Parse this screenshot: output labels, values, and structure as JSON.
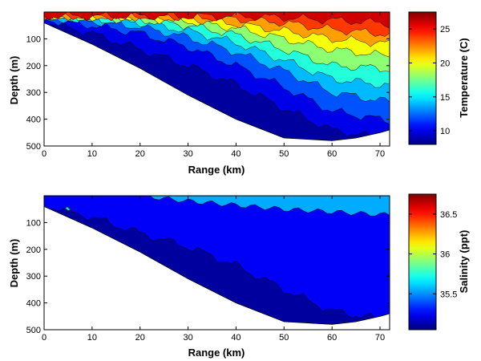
{
  "chart_data": [
    {
      "type": "heatmap",
      "subtype": "filled-contour",
      "title": "",
      "xlabel": "Range (km)",
      "ylabel": "Depth (m)",
      "xlim": [
        0,
        72
      ],
      "ylim": [
        0,
        500
      ],
      "y_reversed": true,
      "x_ticks": [
        "0",
        "10",
        "20",
        "30",
        "40",
        "50",
        "60",
        "70"
      ],
      "y_ticks": [
        "100",
        "200",
        "300",
        "400",
        "500"
      ],
      "colorbar": {
        "label": "Temperature (C)",
        "ticks": [
          "10",
          "15",
          "20",
          "25"
        ],
        "range": [
          8,
          27.5
        ],
        "colormap": "jet"
      },
      "bottom_depth_m": {
        "x": [
          0,
          10,
          20,
          30,
          40,
          50,
          60,
          65,
          70,
          72
        ],
        "y": [
          40,
          120,
          210,
          310,
          400,
          470,
          480,
          470,
          450,
          440
        ]
      },
      "contour_depths_m": {
        "x": [
          0,
          10,
          20,
          30,
          40,
          50,
          60,
          70,
          72
        ],
        "levels": [
          {
            "value": 26,
            "depth": [
              15,
              15,
              15,
              15,
              15,
              20,
              30,
              40,
              45
            ]
          },
          {
            "value": 24,
            "depth": [
              15,
              15,
              15,
              18,
              25,
              40,
              65,
              80,
              85
            ]
          },
          {
            "value": 22,
            "depth": [
              15,
              15,
              18,
              25,
              45,
              70,
              100,
              115,
              120
            ]
          },
          {
            "value": 20,
            "depth": [
              15,
              18,
              22,
              35,
              60,
              100,
              140,
              160,
              165
            ]
          },
          {
            "value": 18,
            "depth": [
              15,
              22,
              30,
              50,
              85,
              140,
              200,
              210,
              215
            ]
          },
          {
            "value": 16,
            "depth": [
              18,
              28,
              40,
              70,
              115,
              180,
              250,
              270,
              275
            ]
          },
          {
            "value": 14,
            "depth": [
              22,
              35,
              55,
              95,
              150,
              220,
              300,
              330,
              335
            ]
          },
          {
            "value": 12,
            "depth": [
              28,
              50,
              80,
              130,
              200,
              280,
              370,
              400,
              405
            ]
          },
          {
            "value": 10,
            "depth": [
              36,
              80,
              140,
              200,
              270,
              360,
              440,
              470,
              470
            ]
          }
        ]
      }
    },
    {
      "type": "heatmap",
      "subtype": "filled-contour",
      "title": "",
      "xlabel": "Range (km)",
      "ylabel": "Depth (m)",
      "xlim": [
        0,
        72
      ],
      "ylim": [
        0,
        500
      ],
      "y_reversed": true,
      "x_ticks": [
        "0",
        "10",
        "20",
        "30",
        "40",
        "50",
        "60",
        "70"
      ],
      "y_ticks": [
        "100",
        "200",
        "300",
        "400",
        "500"
      ],
      "colorbar": {
        "label": "Salinity (ppt)",
        "ticks": [
          "35.5",
          "36",
          "36.5"
        ],
        "range": [
          35.05,
          36.75
        ],
        "colormap": "jet"
      },
      "bottom_depth_m": {
        "x": [
          0,
          10,
          20,
          30,
          40,
          50,
          60,
          65,
          70,
          72
        ],
        "y": [
          40,
          120,
          210,
          310,
          400,
          470,
          480,
          470,
          450,
          440
        ]
      },
      "contour_depths_m": {
        "x": [
          0,
          10,
          20,
          30,
          40,
          50,
          60,
          70,
          72
        ],
        "levels": [
          {
            "value": 35.25,
            "depth": [
              35,
              80,
              140,
              190,
              260,
              350,
              430,
              460,
              460
            ]
          },
          {
            "value": 35.45,
            "depth": [
              30,
              60,
              110,
              165,
              230,
              310,
              380,
              420,
              425
            ]
          },
          {
            "value": 35.65,
            "depth": [
              28,
              50,
              90,
              145,
              200,
              270,
              340,
              380,
              385
            ]
          },
          {
            "value": 35.85,
            "depth": [
              25,
              40,
              75,
              125,
              175,
              240,
              300,
              340,
              345
            ]
          },
          {
            "value": 36.05,
            "depth": [
              22,
              32,
              60,
              105,
              150,
              210,
              260,
              300,
              305
            ]
          },
          {
            "value": 36.25,
            "depth": [
              20,
              26,
              45,
              85,
              130,
              180,
              225,
              260,
              265
            ]
          },
          {
            "value": 36.45,
            "depth": [
              18,
              22,
              35,
              65,
              110,
              150,
              195,
              225,
              230
            ]
          },
          {
            "value": 36.65,
            "depth": [
              18,
              20,
              28,
              45,
              80,
              120,
              150,
              180,
              185
            ]
          }
        ],
        "surface_fresh_value": 35.55,
        "surface_fresh_layer_bottom": [
          0,
          0,
          0,
          20,
          35,
          50,
          60,
          70,
          70
        ]
      }
    }
  ]
}
